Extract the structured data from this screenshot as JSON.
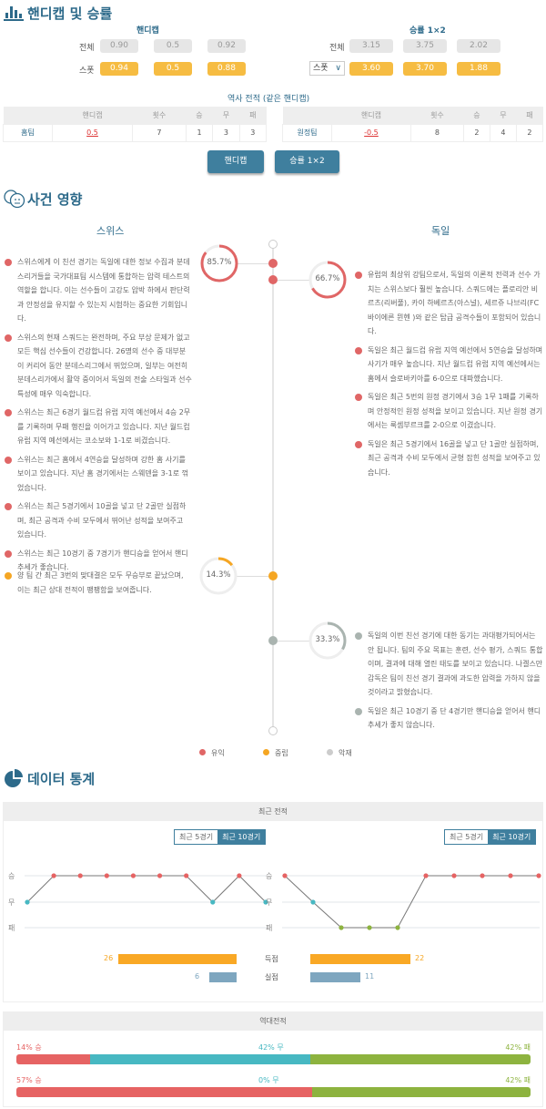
{
  "section1": {
    "title": "핸디캡 및 승률",
    "icon": "bar-chart-icon",
    "handicap": {
      "title": "핸디캡",
      "rows": [
        {
          "label": "전체",
          "values": [
            "0.90",
            "0.5",
            "0.92"
          ]
        },
        {
          "label": "스폿",
          "values": [
            "0.94",
            "0.5",
            "0.88"
          ]
        }
      ]
    },
    "odds": {
      "title": "승률 1×2",
      "rows": [
        {
          "label": "전체",
          "values": [
            "3.15",
            "3.75",
            "2.02"
          ]
        },
        {
          "select": "스폿",
          "values": [
            "3.60",
            "3.70",
            "1.88"
          ]
        }
      ]
    },
    "history_title": "역사 전적 (같은 핸디캡)",
    "headers": [
      "핸디캡",
      "횟수",
      "승",
      "무",
      "패"
    ],
    "home": {
      "team": "홈팀",
      "cells": [
        "0.5",
        "7",
        "1",
        "3",
        "3"
      ]
    },
    "away": {
      "team": "원정팀",
      "cells": [
        "-0.5",
        "8",
        "2",
        "4",
        "2"
      ]
    },
    "buttons": [
      "핸디캡",
      "승률 1×2"
    ]
  },
  "section2": {
    "title": "사건 영향",
    "icon": "faces-icon",
    "home_team": "스위스",
    "away_team": "독일",
    "rings": [
      {
        "value": "85.7%",
        "pct": 85.7,
        "color": "#e06666"
      },
      {
        "value": "66.7%",
        "pct": 66.7,
        "color": "#e06666"
      },
      {
        "value": "14.3%",
        "pct": 14.3,
        "color": "#f5a623"
      },
      {
        "value": "33.3%",
        "pct": 33.3,
        "color": "#aab4b0"
      }
    ],
    "home_positive": [
      "스위스에게 이 친선 경기는 독일에 대한 정보 수집과 분데스리거들을 국가대표팀 시스템에 통합하는 압력 테스트의 역할을 합니다. 이는 선수들이 고강도 압박 하에서 판단력과 안정성을 유지할 수 있는지 시험하는 중요한 기회입니다.",
      "스위스의 현재 스쿼드는 완전하며, 주요 부상 문제가 없고 모든 핵심 선수들이 건강합니다. 26명의 선수 중 대부분이 커리어 동안 분데스리그에서 뛰었으며, 일부는 여전히 분데스리가에서 활약 중이어서 독일의 전술 스타일과 선수 특성에 매우 익숙합니다.",
      "스위스는 최근 6경기 월드컵 유럽 지역 예선에서 4승 2무를 기록하며 무패 행진을 이어가고 있습니다. 지난 월드컵 유럽 지역 예선에서는 코소보와 1-1로 비겼습니다.",
      "스위스는 최근 홈에서 4연승을 달성하며 강한 홈 사기를 보이고 있습니다. 지난 홈 경기에서는 스웨덴을 3-1로 꺾었습니다.",
      "스위스는 최근 5경기에서 10골을 넣고 단 2골만 실점하며, 최근 공격과 수비 모두에서 뛰어난 성적을 보여주고 있습니다.",
      "스위스는 최근 10경기 중 7경기가 핸디승을 얻어서 핸디 추세가 좋습니다."
    ],
    "away_positive": [
      "유럽의 최상위 강팀으로서, 독일의 이론적 전력과 선수 가치는 스위스보다 훨씬 높습니다. 스쿼드에는 플로리안 비르츠(리버풀), 카이 하베르츠(아스널), 세르쥬 나브리(FC 바이에른 뮌헨 )와 같은 탑급 공격수들이 포함되어 있습니다.",
      "독일은 최근 월드컵 유럽 지역 예선에서 5연승을 달성하며 사기가 매우 높습니다. 지난 월드컵 유럽 지역 예선에서는 홈에서 슬로바키아를 6-0으로 대파했습니다.",
      "독일은 최근 5번의 원정 경기에서 3승 1무 1패를 기록하며 안정적인 원정 성적을 보이고 있습니다. 지난 원정 경기에서는 룩셈부르크를 2-0으로 이겼습니다.",
      "독일은 최근 5경기에서 16골을 넣고 단 1골만 실점하며, 최근 공격과 수비 모두에서 균형 잡힌 성적을 보여주고 있습니다."
    ],
    "neutral": [
      "양 팀 간 최근 3번의 맞대결은 모두 무승부로 끝났으며, 이는 최근 상대 전적이 팽팽함을 보여줍니다."
    ],
    "away_negative": [
      "독일의 이번 친선 경기에 대한 동기는 과대평가되어서는 안 됩니다. 팀의 주요 목표는 훈련, 선수 평가, 스쿼드 통합이며, 결과에 대해 열린 태도를 보이고 있습니다. 나겔스만 감독은 팀이 친선 경기 결과에 과도한 압력을 가하지 않을 것이라고 밝혔습니다.",
      "독일은 최근 10경기 중 단 4경기만 핸디승을 얻어서 핸디 추세가 좋지 않습니다."
    ],
    "legend": [
      {
        "label": "유익",
        "color": "#e06666"
      },
      {
        "label": "중립",
        "color": "#f5a623"
      },
      {
        "label": "악재",
        "color": "#cccccc"
      }
    ]
  },
  "section3": {
    "title": "데이터 통계",
    "icon": "pie-chart-icon",
    "recent": {
      "title": "최근 전적",
      "toggle": [
        "최근 5경기",
        "최근 10경기"
      ],
      "y_labels": [
        "승",
        "무",
        "패"
      ],
      "home_results": [
        "D",
        "W",
        "W",
        "W",
        "W",
        "W",
        "W",
        "D",
        "W",
        "D"
      ],
      "away_results": [
        "W",
        "D",
        "L",
        "L",
        "L",
        "W",
        "W",
        "W",
        "W",
        "W"
      ],
      "goals_label": "득점",
      "conceded_label": "실점",
      "home_goals": 26,
      "home_conceded": 6,
      "away_goals": 22,
      "away_conceded": 11
    },
    "h2h": {
      "title": "역대전적",
      "rows": [
        {
          "win": 14,
          "draw": 42,
          "loss": 42,
          "win_label": "14% 승",
          "draw_label": "42% 무",
          "loss_label": "42% 패"
        },
        {
          "win": 57,
          "draw": 0,
          "loss": 42,
          "win_label": "57% 승",
          "draw_label": "0% 무",
          "loss_label": "42% 패"
        }
      ]
    },
    "colors": {
      "win": "#e66363",
      "draw": "#47b8c2",
      "loss": "#8db33f",
      "goals": "#f9a825",
      "conceded": "#7ea6bf"
    }
  }
}
